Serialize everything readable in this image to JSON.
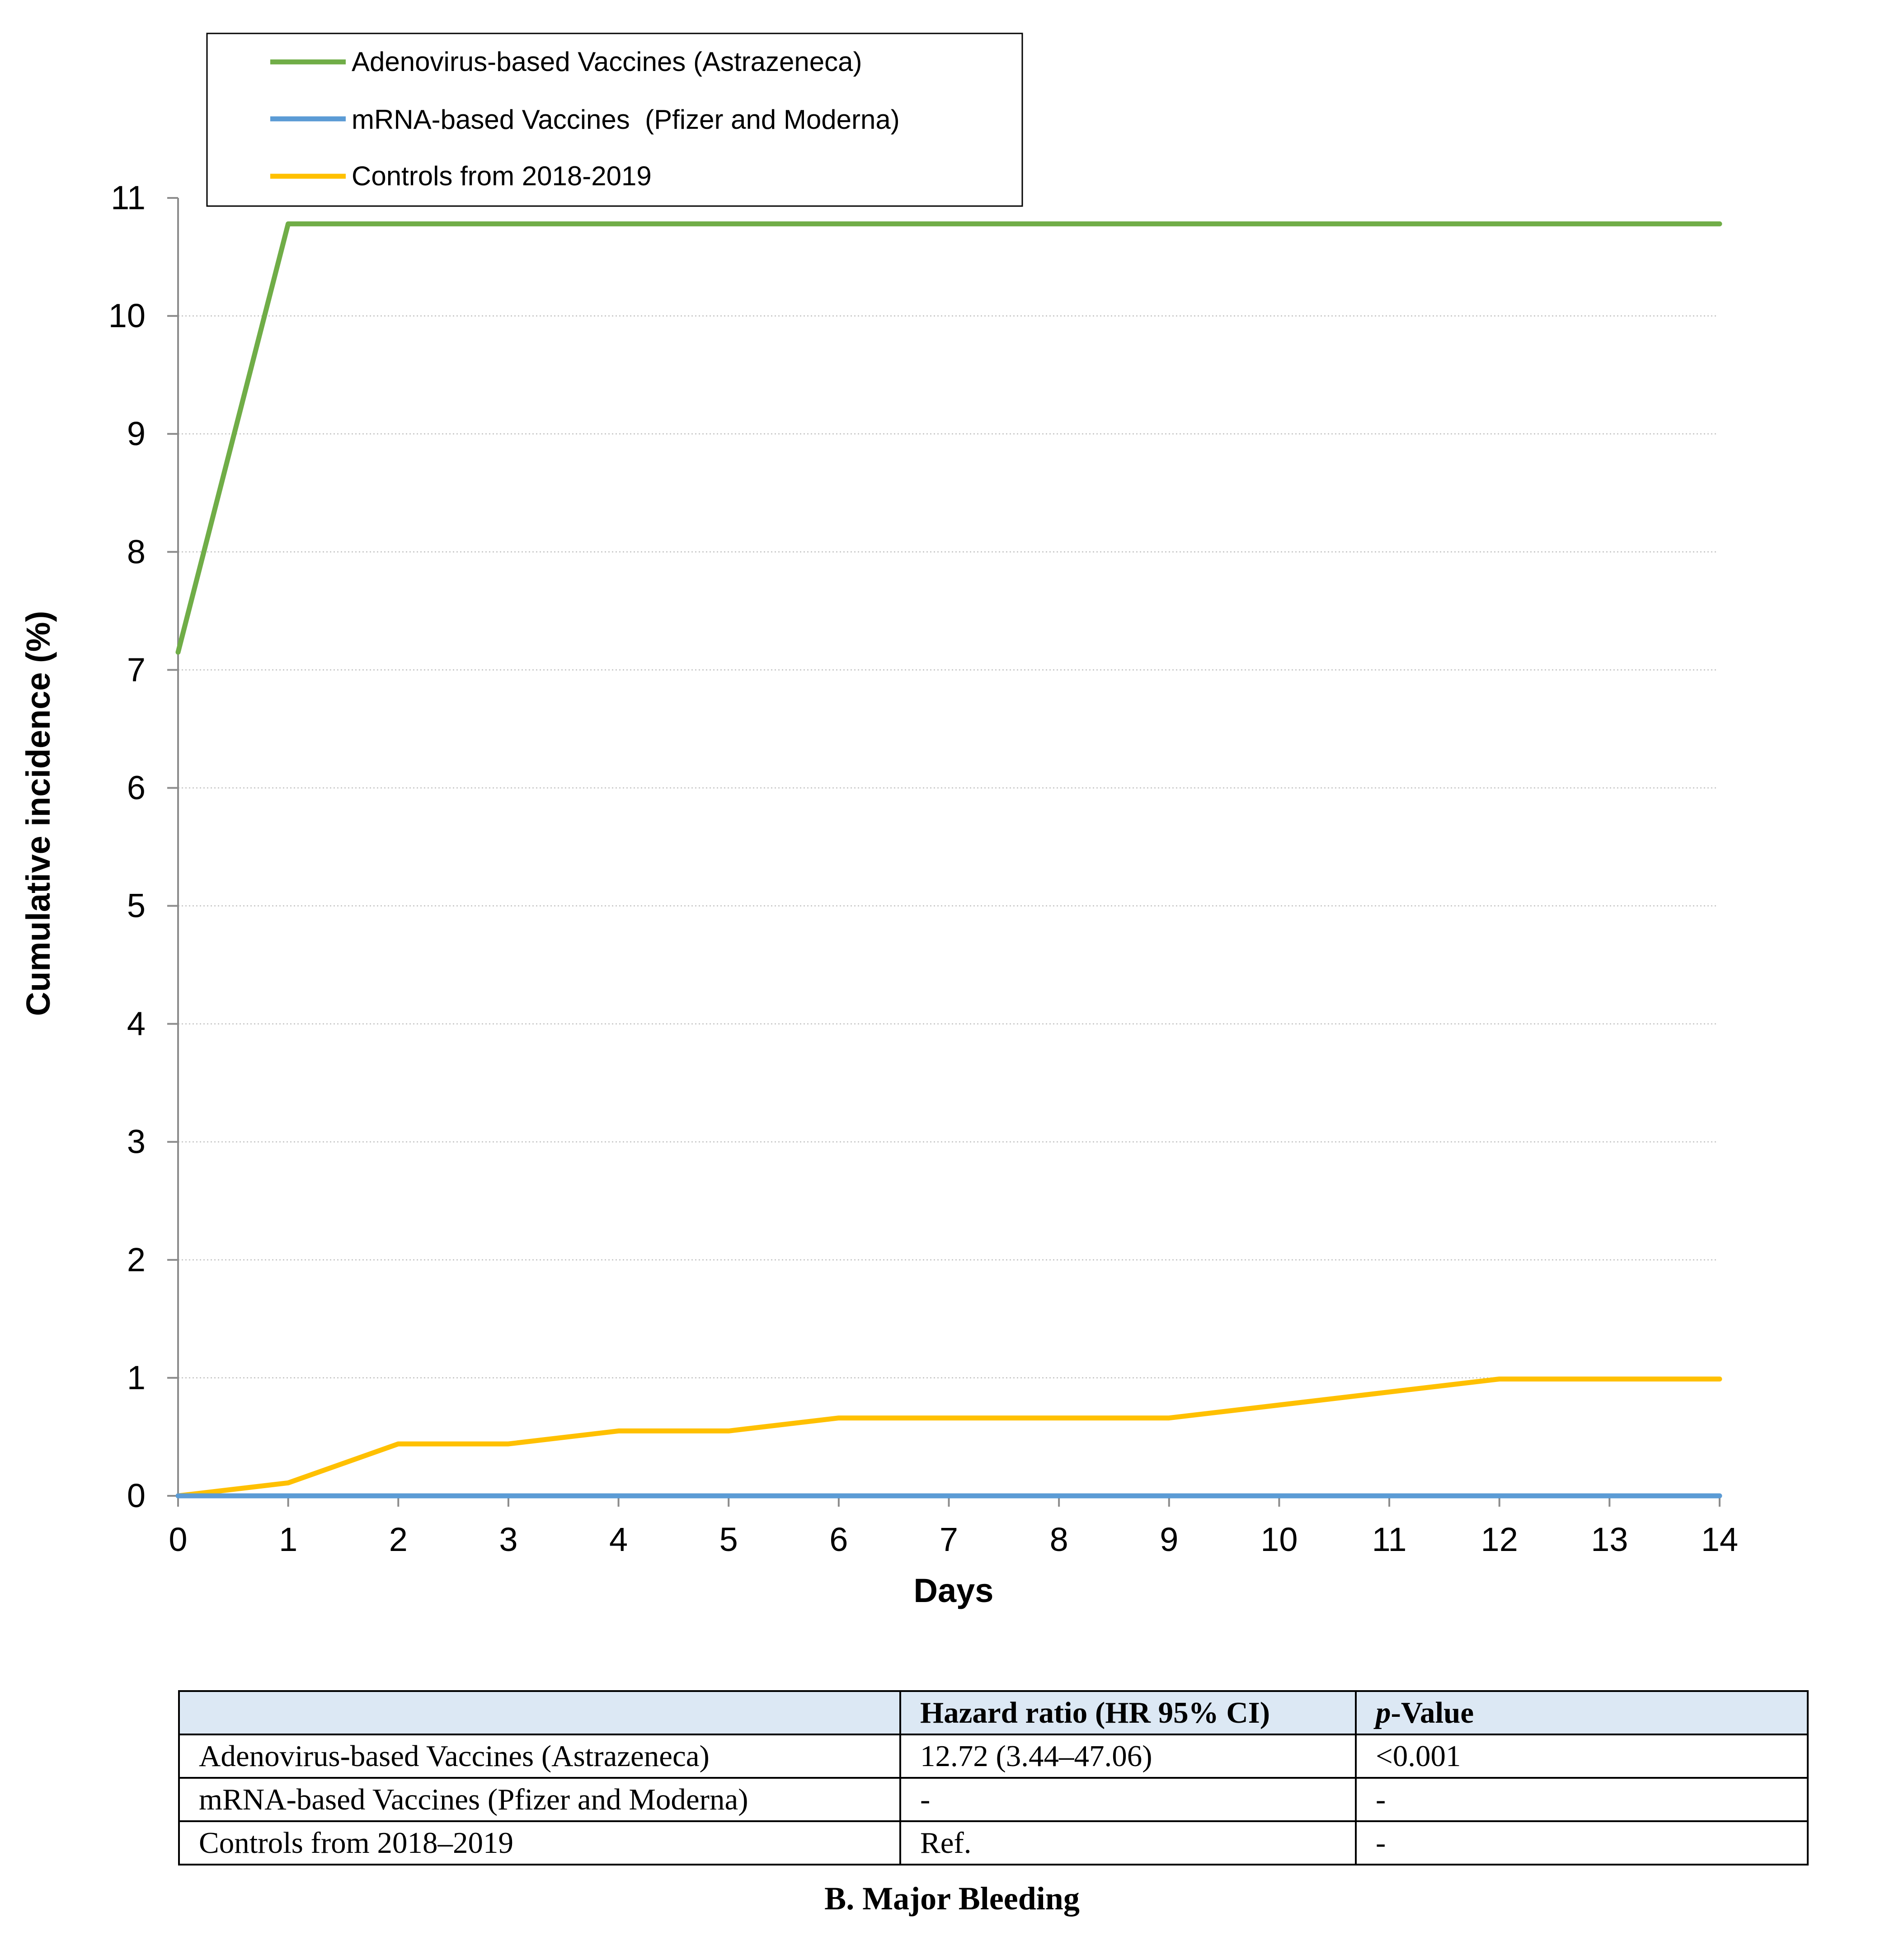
{
  "chart_data": {
    "type": "line",
    "title": "",
    "xlabel": "Days",
    "ylabel": "Cumulative incidence (%)",
    "xlim": [
      0,
      14
    ],
    "ylim": [
      0,
      11
    ],
    "x_ticks": [
      0,
      1,
      2,
      3,
      4,
      5,
      6,
      7,
      8,
      9,
      10,
      11,
      12,
      13,
      14
    ],
    "y_ticks": [
      0,
      1,
      2,
      3,
      4,
      5,
      6,
      7,
      8,
      9,
      10,
      11
    ],
    "grid": "horizontal dotted",
    "legend_position": "top-left",
    "x": [
      0,
      1,
      2,
      3,
      4,
      5,
      6,
      7,
      8,
      9,
      10,
      11,
      12,
      13,
      14
    ],
    "series": [
      {
        "name": "Adenovirus-based Vaccines (Astrazeneca)",
        "color": "#70ad47",
        "values": [
          7.15,
          10.78,
          10.78,
          10.78,
          10.78,
          10.78,
          10.78,
          10.78,
          10.78,
          10.78,
          10.78,
          10.78,
          10.78,
          10.78,
          10.78
        ]
      },
      {
        "name": "mRNA-based Vaccines  (Pfizer and Moderna)",
        "color": "#5b9bd5",
        "values": [
          0,
          0,
          0,
          0,
          0,
          0,
          0,
          0,
          0,
          0,
          0,
          0,
          0,
          0,
          0
        ]
      },
      {
        "name": "Controls from 2018-2019",
        "color": "#ffc000",
        "values": [
          0,
          0.11,
          0.44,
          0.44,
          0.55,
          0.55,
          0.66,
          0.66,
          0.66,
          0.66,
          0.77,
          0.88,
          0.99,
          0.99,
          0.99
        ]
      }
    ]
  },
  "table": {
    "headers": [
      "",
      "Hazard ratio (HR 95% CI)",
      "Value"
    ],
    "p_prefix": "p",
    "rows": [
      [
        "Adenovirus-based Vaccines (Astrazeneca)",
        "12.72 (3.44–47.06)",
        "<0.001"
      ],
      [
        "mRNA-based Vaccines (Pfizer and Moderna)",
        "-",
        "-"
      ],
      [
        "Controls from 2018–2019",
        "Ref.",
        "-"
      ]
    ]
  },
  "caption": "B. Major Bleeding"
}
